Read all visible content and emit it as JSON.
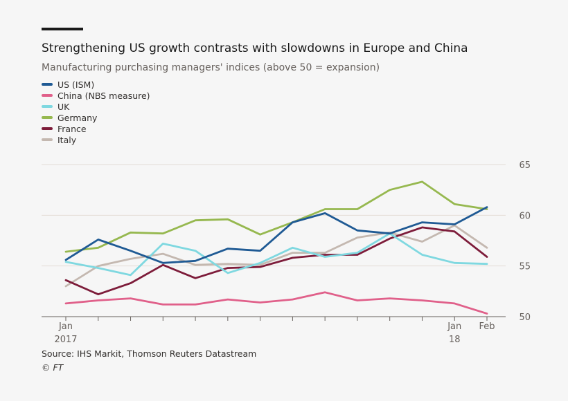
{
  "header": {
    "title": "Strengthening US growth contrasts with slowdowns in Europe and China",
    "subtitle": "Manufacturing purchasing managers' indices (above 50 = expansion)"
  },
  "footer": {
    "source": "Source: IHS Markit, Thomson Reuters Datastream",
    "credit": "© FT"
  },
  "chart_data": {
    "type": "line",
    "title": "Strengthening US growth contrasts with slowdowns in Europe and China",
    "subtitle": "Manufacturing purchasing managers' indices (above 50 = expansion)",
    "xlabel": "",
    "ylabel": "",
    "ylim": [
      50,
      65
    ],
    "yticks": [
      50,
      55,
      60,
      65
    ],
    "grid": true,
    "legend_position": "top-left",
    "x": [
      "2017-01",
      "2017-02",
      "2017-03",
      "2017-04",
      "2017-05",
      "2017-06",
      "2017-07",
      "2017-08",
      "2017-09",
      "2017-10",
      "2017-11",
      "2017-12",
      "2018-01",
      "2018-02"
    ],
    "x_tick_labels": [
      {
        "index": 0,
        "line1": "Jan",
        "line2": "2017"
      },
      {
        "index": 12,
        "line1": "Jan",
        "line2": "18"
      },
      {
        "index": 13,
        "line1": "Feb",
        "line2": ""
      }
    ],
    "series": [
      {
        "name": "US (ISM)",
        "color": "#1f5a94",
        "values": [
          55.6,
          57.6,
          56.5,
          55.3,
          55.5,
          56.7,
          56.5,
          59.3,
          60.2,
          58.5,
          58.2,
          59.3,
          59.1,
          60.8
        ]
      },
      {
        "name": "China (NBS measure)",
        "color": "#e0608a",
        "values": [
          51.3,
          51.6,
          51.8,
          51.2,
          51.2,
          51.7,
          51.4,
          51.7,
          52.4,
          51.6,
          51.8,
          51.6,
          51.3,
          50.3
        ]
      },
      {
        "name": "UK",
        "color": "#7fd8e0",
        "values": [
          55.4,
          54.8,
          54.1,
          57.2,
          56.5,
          54.3,
          55.3,
          56.8,
          55.9,
          56.3,
          58.2,
          56.1,
          55.3,
          55.2
        ]
      },
      {
        "name": "Germany",
        "color": "#96b84f",
        "values": [
          56.4,
          56.8,
          58.3,
          58.2,
          59.5,
          59.6,
          58.1,
          59.3,
          60.6,
          60.6,
          62.5,
          63.3,
          61.1,
          60.6
        ]
      },
      {
        "name": "France",
        "color": "#7d1c3a",
        "values": [
          53.6,
          52.2,
          53.3,
          55.1,
          53.8,
          54.8,
          54.9,
          55.8,
          56.1,
          56.1,
          57.7,
          58.8,
          58.4,
          55.9
        ]
      },
      {
        "name": "Italy",
        "color": "#c4b8b0",
        "values": [
          53.0,
          55.0,
          55.7,
          56.2,
          55.1,
          55.2,
          55.1,
          56.3,
          56.3,
          57.8,
          58.3,
          57.4,
          59.0,
          56.8
        ]
      }
    ]
  }
}
